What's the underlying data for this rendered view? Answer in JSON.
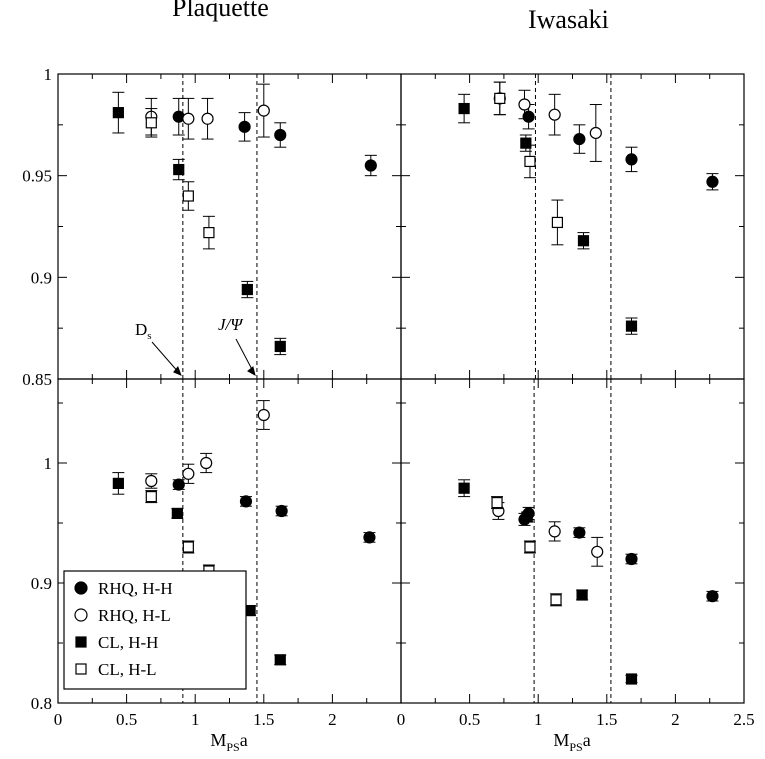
{
  "titles": {
    "left": "Plaquette",
    "right": "Iwasaki"
  },
  "xlabel": {
    "main": "M",
    "sub": "PS",
    "suffix": "a"
  },
  "annotations": {
    "ds": {
      "main": "D",
      "sub": "s"
    },
    "jpsi": "J/Ψ"
  },
  "legend": [
    {
      "label": "RHQ, H-H",
      "marker": "circle-filled"
    },
    {
      "label": "RHQ, H-L",
      "marker": "circle-open"
    },
    {
      "label": "CL, H-H",
      "marker": "square-filled"
    },
    {
      "label": "CL, H-L",
      "marker": "square-open"
    }
  ],
  "chart_data": [
    {
      "type": "scatter",
      "panel": "top-left",
      "title": "Plaquette",
      "xlim": [
        0,
        2.5
      ],
      "ylim": [
        0.85,
        1.0
      ],
      "yticks": [
        0.85,
        0.9,
        0.95,
        1.0
      ],
      "ytick_labels": [
        "0.85",
        "0.9",
        "0.95",
        "1"
      ],
      "vlines": [
        0.91,
        1.45
      ],
      "series": [
        {
          "name": "RHQ, H-H",
          "marker": "circle-filled",
          "points": [
            [
              0.88,
              0.979,
              0.009
            ],
            [
              1.36,
              0.974,
              0.007
            ],
            [
              1.62,
              0.97,
              0.006
            ],
            [
              2.28,
              0.955,
              0.005
            ]
          ]
        },
        {
          "name": "RHQ, H-L",
          "marker": "circle-open",
          "points": [
            [
              0.68,
              0.979,
              0.009
            ],
            [
              0.95,
              0.978,
              0.01
            ],
            [
              1.09,
              0.978,
              0.01
            ],
            [
              1.5,
              0.982,
              0.013
            ]
          ]
        },
        {
          "name": "CL, H-H",
          "marker": "square-filled",
          "points": [
            [
              0.44,
              0.981,
              0.01
            ],
            [
              0.88,
              0.953,
              0.005
            ],
            [
              1.38,
              0.894,
              0.004
            ],
            [
              1.62,
              0.866,
              0.004
            ]
          ]
        },
        {
          "name": "CL, H-L",
          "marker": "square-open",
          "points": [
            [
              0.68,
              0.976,
              0.007
            ],
            [
              0.95,
              0.94,
              0.007
            ],
            [
              1.1,
              0.922,
              0.008
            ]
          ]
        }
      ]
    },
    {
      "type": "scatter",
      "panel": "top-right",
      "title": "Iwasaki",
      "xlim": [
        0,
        2.5
      ],
      "ylim": [
        0.85,
        1.0
      ],
      "vlines": [
        0.98,
        1.53
      ],
      "series": [
        {
          "name": "RHQ, H-H",
          "marker": "circle-filled",
          "points": [
            [
              0.93,
              0.979,
              0.006
            ],
            [
              1.3,
              0.968,
              0.007
            ],
            [
              1.68,
              0.958,
              0.006
            ],
            [
              2.27,
              0.947,
              0.004
            ]
          ]
        },
        {
          "name": "RHQ, H-L",
          "marker": "circle-open",
          "points": [
            [
              0.72,
              0.988,
              0.008
            ],
            [
              0.9,
              0.985,
              0.007
            ],
            [
              1.12,
              0.98,
              0.01
            ],
            [
              1.42,
              0.971,
              0.014
            ]
          ]
        },
        {
          "name": "CL, H-H",
          "marker": "square-filled",
          "points": [
            [
              0.46,
              0.983,
              0.007
            ],
            [
              0.91,
              0.966,
              0.004
            ],
            [
              1.33,
              0.918,
              0.004
            ],
            [
              1.68,
              0.876,
              0.004
            ]
          ]
        },
        {
          "name": "CL, H-L",
          "marker": "square-open",
          "points": [
            [
              0.72,
              0.988,
              0.008
            ],
            [
              0.94,
              0.957,
              0.008
            ],
            [
              1.14,
              0.927,
              0.011
            ]
          ]
        }
      ]
    },
    {
      "type": "scatter",
      "panel": "bottom-left",
      "xlim": [
        0,
        2.5
      ],
      "ylim": [
        0.8,
        1.07
      ],
      "yticks": [
        0.8,
        0.9,
        1.0
      ],
      "ytick_labels": [
        "0.8",
        "0.9",
        "1"
      ],
      "xticks": [
        0,
        0.5,
        1,
        1.5,
        2
      ],
      "xtick_labels": [
        "0",
        "0.5",
        "1",
        "1.5",
        "2"
      ],
      "vlines": [
        0.91,
        1.45
      ],
      "series": [
        {
          "name": "RHQ, H-H",
          "marker": "circle-filled",
          "points": [
            [
              0.88,
              0.982,
              0.004
            ],
            [
              1.37,
              0.968,
              0.004
            ],
            [
              1.63,
              0.96,
              0.004
            ],
            [
              2.27,
              0.938,
              0.004
            ]
          ]
        },
        {
          "name": "RHQ, H-L",
          "marker": "circle-open",
          "points": [
            [
              0.68,
              0.985,
              0.006
            ],
            [
              0.95,
              0.991,
              0.008
            ],
            [
              1.08,
              1.0,
              0.008
            ],
            [
              1.5,
              1.04,
              0.012
            ]
          ]
        },
        {
          "name": "CL, H-H",
          "marker": "square-filled",
          "points": [
            [
              0.44,
              0.983,
              0.009
            ],
            [
              0.87,
              0.958,
              0.004
            ],
            [
              1.4,
              0.877,
              0.004
            ],
            [
              1.62,
              0.836,
              0.004
            ]
          ]
        },
        {
          "name": "CL, H-L",
          "marker": "square-open",
          "points": [
            [
              0.68,
              0.972,
              0.005
            ],
            [
              0.95,
              0.93,
              0.005
            ],
            [
              1.1,
              0.91,
              0.005
            ]
          ]
        }
      ]
    },
    {
      "type": "scatter",
      "panel": "bottom-right",
      "xlim": [
        0,
        2.5
      ],
      "ylim": [
        0.8,
        1.07
      ],
      "xticks": [
        0,
        0.5,
        1,
        1.5,
        2,
        2.5
      ],
      "xtick_labels": [
        "0",
        "0.5",
        "1",
        "1.5",
        "2",
        "2.5"
      ],
      "vlines": [
        0.97,
        1.53
      ],
      "series": [
        {
          "name": "RHQ, H-H",
          "marker": "circle-filled",
          "points": [
            [
              0.9,
              0.953,
              0.005
            ],
            [
              0.93,
              0.958,
              0.005
            ],
            [
              1.3,
              0.942,
              0.004
            ],
            [
              1.68,
              0.92,
              0.004
            ],
            [
              2.27,
              0.889,
              0.004
            ]
          ]
        },
        {
          "name": "RHQ, H-L",
          "marker": "circle-open",
          "points": [
            [
              0.71,
              0.96,
              0.007
            ],
            [
              1.12,
              0.943,
              0.008
            ],
            [
              1.43,
              0.926,
              0.012
            ]
          ]
        },
        {
          "name": "CL, H-H",
          "marker": "square-filled",
          "points": [
            [
              0.46,
              0.979,
              0.007
            ],
            [
              0.92,
              0.955,
              0.004
            ],
            [
              1.32,
              0.89,
              0.004
            ],
            [
              1.68,
              0.82,
              0.003
            ]
          ]
        },
        {
          "name": "CL, H-L",
          "marker": "square-open",
          "points": [
            [
              0.7,
              0.967,
              0.005
            ],
            [
              0.94,
              0.93,
              0.005
            ],
            [
              1.13,
              0.886,
              0.005
            ]
          ]
        }
      ]
    }
  ]
}
